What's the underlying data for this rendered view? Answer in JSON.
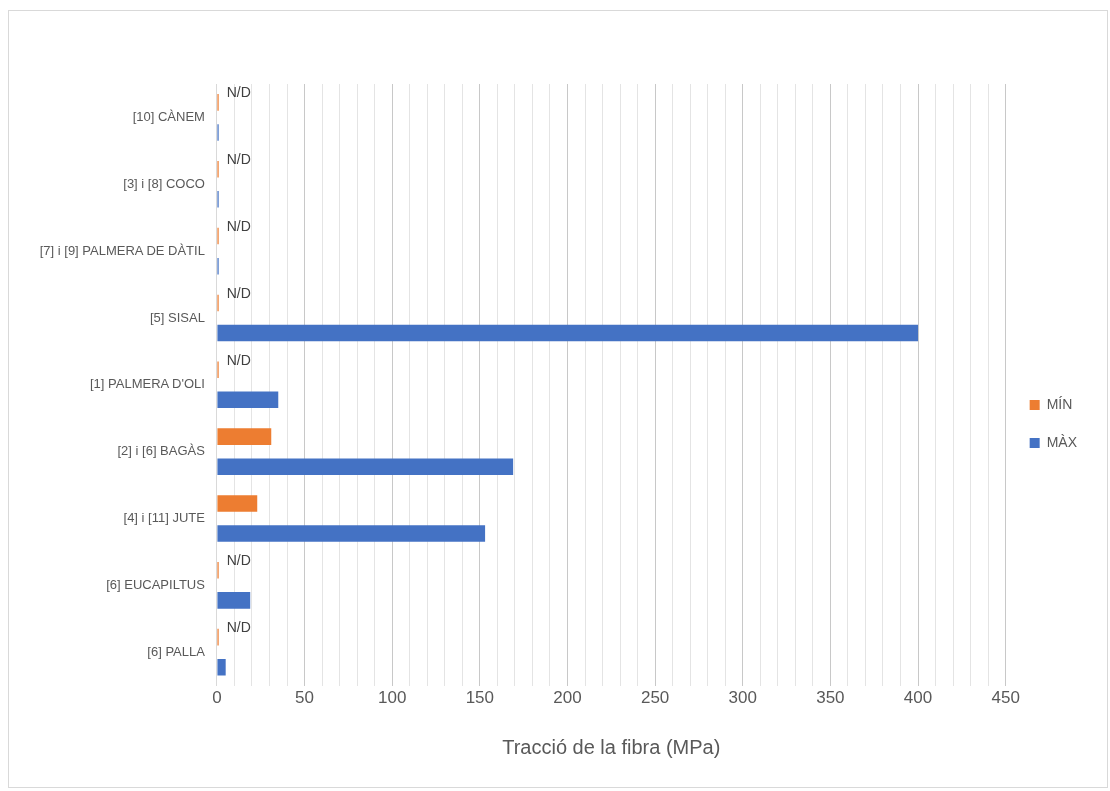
{
  "chart_data": {
    "type": "bar",
    "orientation": "horizontal",
    "xlabel": "Tracció de la fibra (MPa)",
    "categories": [
      "[10] CÀNEM",
      "[3] i [8] COCO",
      "[7] i [9] PALMERA DE DÀTIL",
      "[5] SISAL",
      "[1] PALMERA D'OLI",
      "[2] i [6] BAGÀS",
      "[4] i [11] JUTE",
      "[6] EUCAPILTUS",
      "[6] PALLA"
    ],
    "series": [
      {
        "name": "MÍN",
        "color": "#ed7d31",
        "values": [
          1,
          1,
          1,
          1,
          1,
          31,
          23,
          1,
          1
        ],
        "value_labels": [
          "N/D",
          "N/D",
          "N/D",
          "N/D",
          "N/D",
          null,
          null,
          "N/D",
          "N/D"
        ]
      },
      {
        "name": "MÀX",
        "color": "#4472c4",
        "values": [
          1,
          1,
          1,
          400,
          35,
          169,
          153,
          19,
          5
        ]
      }
    ],
    "xlim": [
      0,
      450
    ],
    "xticks": [
      0,
      {
        "value": 10,
        "label": null
      },
      {
        "value": 20,
        "label": null
      },
      {
        "value": 30,
        "label": null
      },
      {
        "value": 40,
        "label": null
      },
      50,
      {
        "value": 60,
        "label": null
      },
      {
        "value": 70,
        "label": null
      },
      {
        "value": 80,
        "label": null
      },
      {
        "value": 90,
        "label": null
      },
      100,
      {
        "value": 110,
        "label": null
      },
      {
        "value": 120,
        "label": null
      },
      {
        "value": 130,
        "label": null
      },
      {
        "value": 140,
        "label": null
      },
      150,
      {
        "value": 160,
        "label": null
      },
      {
        "value": 170,
        "label": null
      },
      {
        "value": 180,
        "label": null
      },
      {
        "value": 190,
        "label": null
      },
      200,
      {
        "value": 210,
        "label": null
      },
      {
        "value": 220,
        "label": null
      },
      {
        "value": 230,
        "label": null
      },
      {
        "value": 240,
        "label": null
      },
      250,
      {
        "value": 260,
        "label": null
      },
      {
        "value": 270,
        "label": null
      },
      {
        "value": 280,
        "label": null
      },
      {
        "value": 290,
        "label": null
      },
      300,
      {
        "value": 310,
        "label": null
      },
      {
        "value": 320,
        "label": null
      },
      {
        "value": 330,
        "label": null
      },
      {
        "value": 340,
        "label": null
      },
      350,
      {
        "value": 360,
        "label": null
      },
      {
        "value": 370,
        "label": null
      },
      {
        "value": 380,
        "label": null
      },
      {
        "value": 390,
        "label": null
      },
      400,
      {
        "value": 410,
        "label": null
      },
      {
        "value": 420,
        "label": null
      },
      {
        "value": 430,
        "label": null
      },
      {
        "value": 440,
        "label": null
      },
      450
    ],
    "grid": "x",
    "legend": "right"
  }
}
